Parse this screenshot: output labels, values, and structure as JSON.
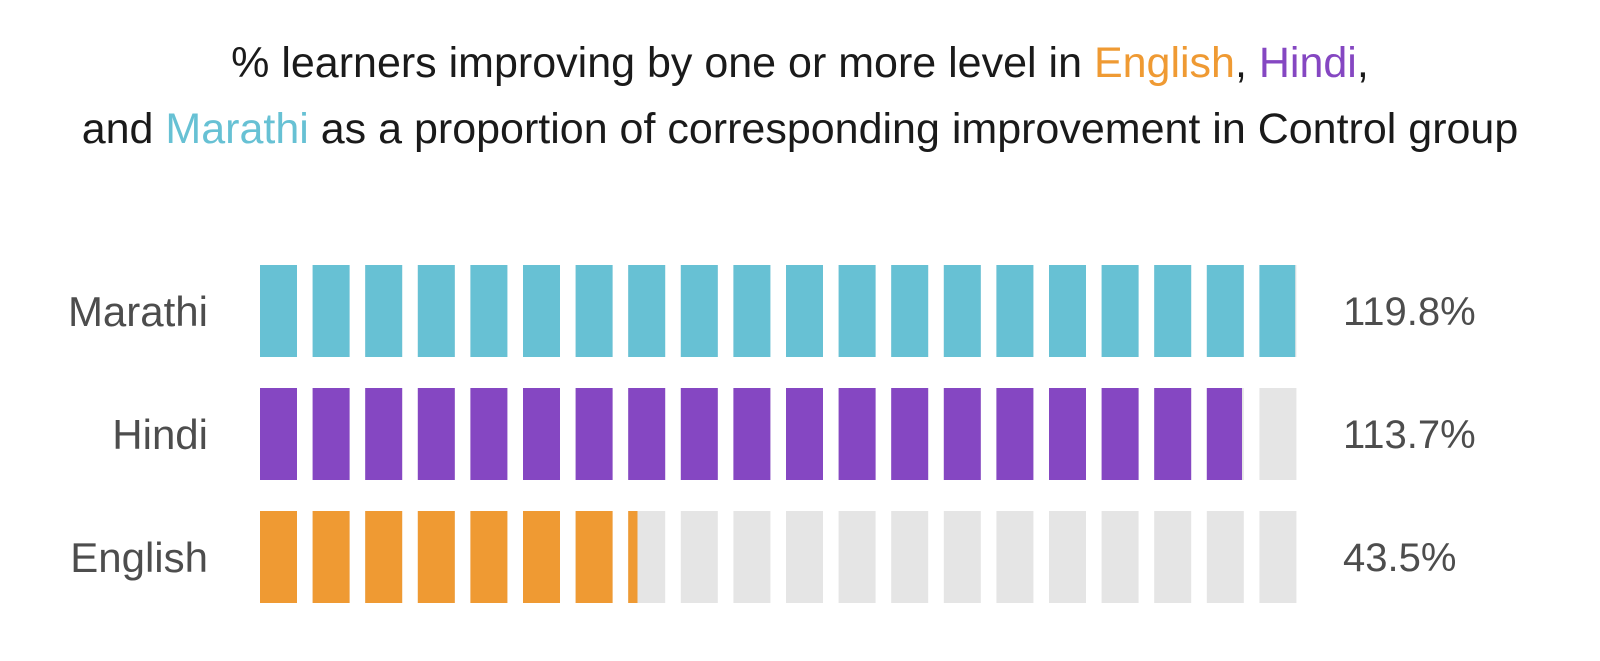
{
  "chart_data": {
    "type": "bar",
    "title": {
      "line1": {
        "pre": "% learners improving by one or more level in ",
        "english": "English",
        "sep1": ", ",
        "hindi": "Hindi",
        "sep2": ","
      },
      "line2": {
        "pre": "and ",
        "marathi": "Marathi",
        "post": " as a proportion of corresponding improvement in Control group"
      }
    },
    "categories": [
      "Marathi",
      "Hindi",
      "English"
    ],
    "values": [
      119.8,
      113.7,
      43.5
    ],
    "value_labels": [
      "119.8%",
      "113.7%",
      "43.5%"
    ],
    "max_value": 120,
    "units_per_segment": 6,
    "colors": {
      "Marathi": "#67c1d4",
      "Hindi": "#8547c2",
      "English": "#ef9a33",
      "empty": "#e5e5e5"
    }
  }
}
